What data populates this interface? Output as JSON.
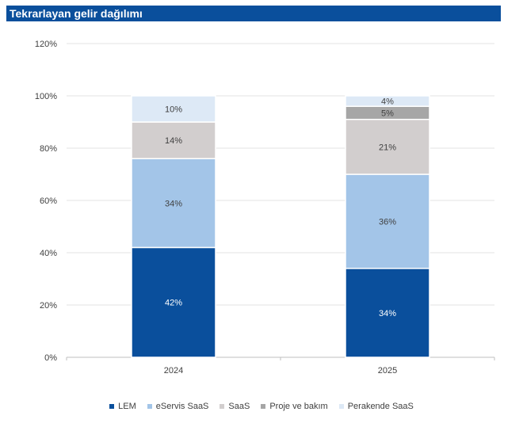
{
  "chart_data": {
    "type": "bar",
    "stacked": true,
    "title": "Tekrarlayan gelir dağılımı",
    "categories": [
      "2024",
      "2025"
    ],
    "series": [
      {
        "name": "LEM",
        "color": "#0a4f9c",
        "label_color": "#ffffff",
        "values": [
          42,
          34
        ],
        "labels": [
          "42%",
          "34%"
        ]
      },
      {
        "name": "eServis SaaS",
        "color": "#a3c5e8",
        "label_color": "#404040",
        "values": [
          34,
          36
        ],
        "labels": [
          "34%",
          "36%"
        ]
      },
      {
        "name": "SaaS",
        "color": "#d2cece",
        "label_color": "#404040",
        "values": [
          14,
          21
        ],
        "labels": [
          "14%",
          "21%"
        ]
      },
      {
        "name": "Proje ve bakım",
        "color": "#a6a6a6",
        "label_color": "#404040",
        "values": [
          0,
          5
        ],
        "labels": [
          "",
          "5%"
        ]
      },
      {
        "name": "Perakende SaaS",
        "color": "#dde9f6",
        "label_color": "#404040",
        "values": [
          10,
          4
        ],
        "labels": [
          "10%",
          "4%"
        ]
      }
    ],
    "y_ticks": [
      "0%",
      "20%",
      "40%",
      "60%",
      "80%",
      "100%",
      "120%"
    ],
    "ylim": [
      0,
      120
    ],
    "grid": true,
    "legend_position": "bottom"
  }
}
